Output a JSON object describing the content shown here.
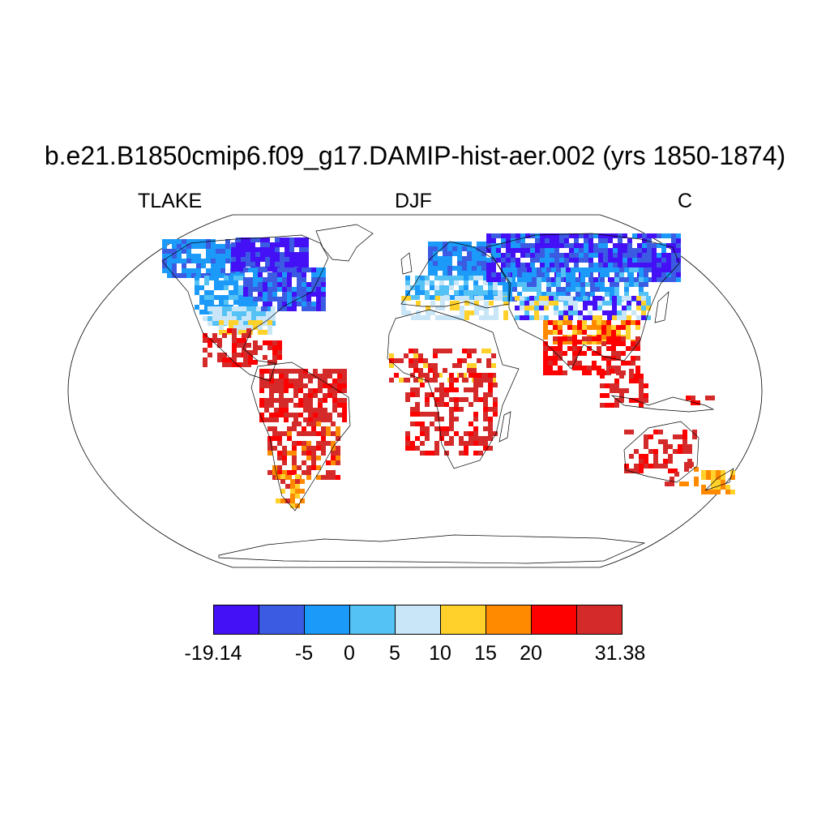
{
  "title": "b.e21.B1850cmip6.f09_g17.DAMIP-hist-aer.002 (yrs 1850-1874)",
  "subtitles": {
    "left": "TLAKE",
    "center": "DJF",
    "right": "C"
  },
  "colorbar": {
    "colors": [
      "#4410f5",
      "#3b5be3",
      "#1b9af9",
      "#55c2f5",
      "#c8e6f7",
      "#ffd12a",
      "#ff8a00",
      "#ff0000",
      "#d42a2a"
    ],
    "labels": [
      "-19.14",
      "-5",
      "0",
      "5",
      "10",
      "15",
      "20",
      "31.38"
    ]
  }
}
